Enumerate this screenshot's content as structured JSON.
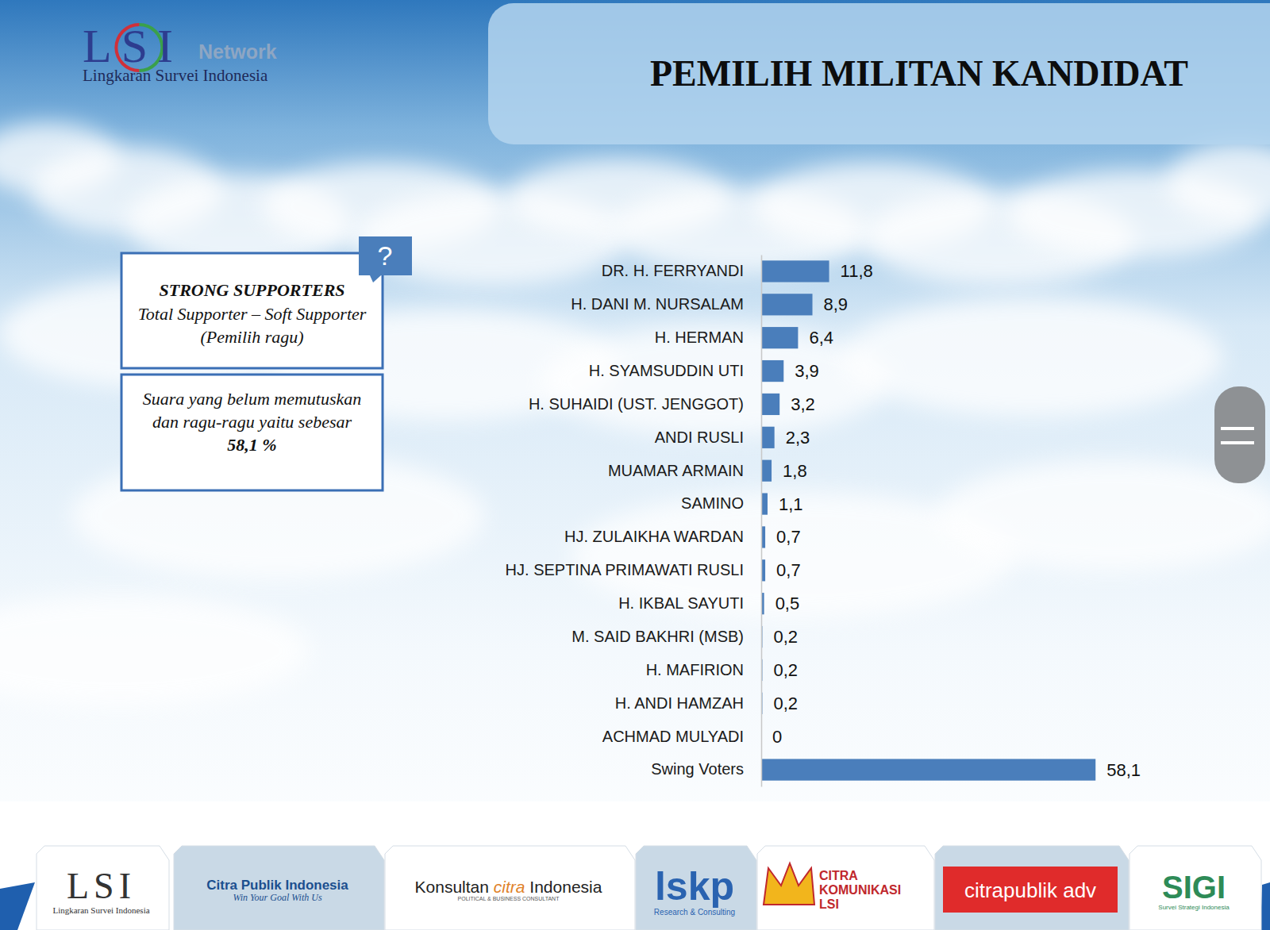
{
  "header": {
    "logo": {
      "mark": "LSI",
      "network": "Network",
      "name": "Lingkaran Survei Indonesia"
    },
    "title": "PEMILIH MILITAN KANDIDAT"
  },
  "info_boxes": {
    "icon": "?",
    "supporters": {
      "title": "STRONG SUPPORTERS",
      "text": "Total Supporter – Soft Supporter (Pemilih ragu)"
    },
    "undecided": {
      "text": "Suara yang belum memutuskan dan ragu-ragu yaitu sebesar",
      "value": "58,1 %"
    }
  },
  "chart_data": {
    "type": "bar",
    "orientation": "horizontal",
    "categories": [
      "DR. H. FERRYANDI",
      "H. DANI M. NURSALAM",
      "H. HERMAN",
      "H. SYAMSUDDIN UTI",
      "H. SUHAIDI (UST. JENGGOT)",
      "ANDI RUSLI",
      "MUAMAR ARMAIN",
      "SAMINO",
      "HJ. ZULAIKHA WARDAN",
      "HJ. SEPTINA PRIMAWATI RUSLI",
      "H. IKBAL SAYUTI",
      "M. SAID BAKHRI (MSB)",
      "H. MAFIRION",
      "H. ANDI HAMZAH",
      "ACHMAD MULYADI",
      "Swing Voters"
    ],
    "values": [
      11.8,
      8.9,
      6.4,
      3.9,
      3.2,
      2.3,
      1.8,
      1.1,
      0.7,
      0.7,
      0.5,
      0.2,
      0.2,
      0.2,
      0,
      58.1
    ],
    "value_labels": [
      "11,8",
      "8,9",
      "6,4",
      "3,9",
      "3,2",
      "2,3",
      "1,8",
      "1,1",
      "0,7",
      "0,7",
      "0,5",
      "0,2",
      "0,2",
      "0,2",
      "0",
      "58,1"
    ],
    "color": "#4a7ebb",
    "xlim": [
      0,
      60
    ],
    "data_labels": true,
    "tick_labels": "y",
    "grid": false
  },
  "footer_logos": [
    [
      "LSI",
      "Lingkaran Survei Indonesia"
    ],
    [
      "Citra Publik Indonesia",
      "Win Your Goal With Us"
    ],
    [
      "Konsultan",
      "citra",
      "Indonesia",
      "POLITICAL & BUSINESS CONSULTANT"
    ],
    [
      "lskp",
      "Research & Consulting"
    ],
    [
      "CITRA",
      "KOMUNIKASI",
      "LSI"
    ],
    [
      "citrapublik adv"
    ],
    [
      "SIGI",
      "Survei Strategi Indonesia"
    ]
  ]
}
